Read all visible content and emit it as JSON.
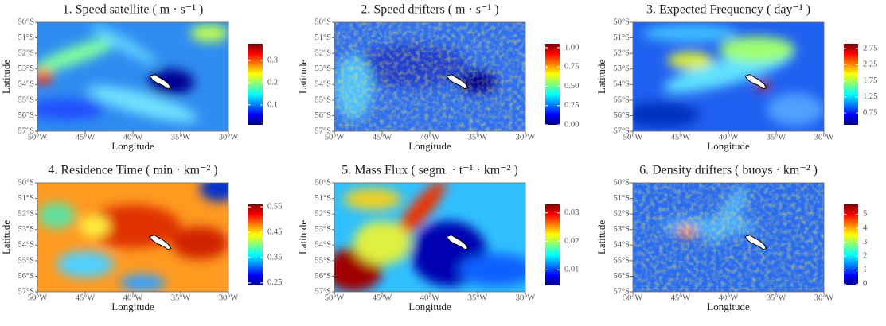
{
  "chart_data": [
    {
      "type": "heatmap",
      "title": "1. Speed satellite ( m · s⁻¹ )",
      "xlabel": "Longitude",
      "ylabel": "Latitude",
      "xlim": [
        -50,
        -30
      ],
      "xticks": [
        {
          "value": -50,
          "label": "50°W"
        },
        {
          "value": -45,
          "label": "45°W"
        },
        {
          "value": -40,
          "label": "40°W"
        },
        {
          "value": -35,
          "label": "35°W"
        },
        {
          "value": -30,
          "label": "30°W"
        }
      ],
      "ylim": [
        -57,
        -50
      ],
      "yticks": [
        {
          "value": -57,
          "label": "57°S"
        },
        {
          "value": -56,
          "label": "56°S"
        },
        {
          "value": -55,
          "label": "55°S"
        },
        {
          "value": -54,
          "label": "54°S"
        },
        {
          "value": -53,
          "label": "53°S"
        },
        {
          "value": -52,
          "label": "52°S"
        },
        {
          "value": -51,
          "label": "51°S"
        },
        {
          "value": -50,
          "label": "50°S"
        }
      ],
      "clim": [
        0.01,
        0.375
      ],
      "cticks": [
        0.1,
        0.2,
        0.3
      ]
    },
    {
      "type": "heatmap",
      "title": "2. Speed drifters ( m · s⁻¹ )",
      "xlabel": "Longitude",
      "ylabel": "Latitude",
      "xlim": [
        -50,
        -30
      ],
      "xticks": [
        {
          "value": -50,
          "label": "50°W"
        },
        {
          "value": -45,
          "label": "45°W"
        },
        {
          "value": -40,
          "label": "40°W"
        },
        {
          "value": -35,
          "label": "35°W"
        },
        {
          "value": -30,
          "label": "30°W"
        }
      ],
      "ylim": [
        -57,
        -50
      ],
      "yticks": [
        {
          "value": -57,
          "label": "57°S"
        },
        {
          "value": -56,
          "label": "56°S"
        },
        {
          "value": -55,
          "label": "55°S"
        },
        {
          "value": -54,
          "label": "54°S"
        },
        {
          "value": -53,
          "label": "53°S"
        },
        {
          "value": -52,
          "label": "52°S"
        },
        {
          "value": -51,
          "label": "51°S"
        },
        {
          "value": -50,
          "label": "50°S"
        }
      ],
      "clim": [
        0,
        1.05
      ],
      "cticks": [
        {
          "value": 0,
          "label": "0.00"
        },
        0.25,
        {
          "value": 0.5,
          "label": "0.50"
        },
        0.75,
        {
          "value": 1,
          "label": "1.00"
        }
      ]
    },
    {
      "type": "heatmap",
      "title": "3. Expected Frequency ( day⁻¹ )",
      "xlabel": "Longitude",
      "ylabel": "Latitude",
      "xlim": [
        -50,
        -30
      ],
      "xticks": [
        {
          "value": -50,
          "label": "50°W"
        },
        {
          "value": -45,
          "label": "45°W"
        },
        {
          "value": -40,
          "label": "40°W"
        },
        {
          "value": -35,
          "label": "35°W"
        },
        {
          "value": -30,
          "label": "30°W"
        }
      ],
      "ylim": [
        -57,
        -50
      ],
      "yticks": [
        {
          "value": -57,
          "label": "57°S"
        },
        {
          "value": -56,
          "label": "56°S"
        },
        {
          "value": -55,
          "label": "55°S"
        },
        {
          "value": -54,
          "label": "54°S"
        },
        {
          "value": -53,
          "label": "53°S"
        },
        {
          "value": -52,
          "label": "52°S"
        },
        {
          "value": -51,
          "label": "51°S"
        },
        {
          "value": -50,
          "label": "50°S"
        }
      ],
      "clim": [
        0.38,
        2.9
      ],
      "cticks": [
        0.75,
        1.25,
        1.75,
        2.25,
        2.75
      ]
    },
    {
      "type": "heatmap",
      "title": "4. Residence Time ( min · km⁻² )",
      "xlabel": "Longitude",
      "ylabel": "Latitude",
      "xlim": [
        -50,
        -30
      ],
      "xticks": [
        {
          "value": -50,
          "label": "50°W"
        },
        {
          "value": -45,
          "label": "45°W"
        },
        {
          "value": -40,
          "label": "40°W"
        },
        {
          "value": -35,
          "label": "35°W"
        },
        {
          "value": -30,
          "label": "30°W"
        }
      ],
      "ylim": [
        -57,
        -50
      ],
      "yticks": [
        {
          "value": -57,
          "label": "57°S"
        },
        {
          "value": -56,
          "label": "56°S"
        },
        {
          "value": -55,
          "label": "55°S"
        },
        {
          "value": -54,
          "label": "54°S"
        },
        {
          "value": -53,
          "label": "53°S"
        },
        {
          "value": -52,
          "label": "52°S"
        },
        {
          "value": -51,
          "label": "51°S"
        },
        {
          "value": -50,
          "label": "50°S"
        }
      ],
      "clim": [
        0.24,
        0.56
      ],
      "cticks": [
        0.25,
        0.35,
        0.45,
        0.55
      ]
    },
    {
      "type": "heatmap",
      "title": "5. Mass Flux ( segm. · t⁻¹ · km⁻² )",
      "xlabel": "Longitude",
      "ylabel": "Latitude",
      "xlim": [
        -50,
        -30
      ],
      "xticks": [
        {
          "value": -50,
          "label": "50°W"
        },
        {
          "value": -45,
          "label": "45°W"
        },
        {
          "value": -40,
          "label": "40°W"
        },
        {
          "value": -35,
          "label": "35°W"
        },
        {
          "value": -30,
          "label": "30°W"
        }
      ],
      "ylim": [
        -57,
        -50
      ],
      "yticks": [
        {
          "value": -57,
          "label": "57°S"
        },
        {
          "value": -56,
          "label": "56°S"
        },
        {
          "value": -55,
          "label": "55°S"
        },
        {
          "value": -54,
          "label": "54°S"
        },
        {
          "value": -53,
          "label": "53°S"
        },
        {
          "value": -52,
          "label": "52°S"
        },
        {
          "value": -51,
          "label": "51°S"
        },
        {
          "value": -50,
          "label": "50°S"
        }
      ],
      "clim": [
        0.0045,
        0.033
      ],
      "cticks": [
        0.01,
        0.02,
        0.03
      ]
    },
    {
      "type": "heatmap",
      "title": "6. Density drifters ( buoys · km⁻² )",
      "xlabel": "Longitude",
      "ylabel": "Latitude",
      "xlim": [
        -50,
        -30
      ],
      "xticks": [
        {
          "value": -50,
          "label": "50°W"
        },
        {
          "value": -45,
          "label": "45°W"
        },
        {
          "value": -40,
          "label": "40°W"
        },
        {
          "value": -35,
          "label": "35°W"
        },
        {
          "value": -30,
          "label": "30°W"
        }
      ],
      "ylim": [
        -57,
        -50
      ],
      "yticks": [
        {
          "value": -57,
          "label": "57°S"
        },
        {
          "value": -56,
          "label": "56°S"
        },
        {
          "value": -55,
          "label": "55°S"
        },
        {
          "value": -54,
          "label": "54°S"
        },
        {
          "value": -53,
          "label": "53°S"
        },
        {
          "value": -52,
          "label": "52°S"
        },
        {
          "value": -51,
          "label": "51°S"
        },
        {
          "value": -50,
          "label": "50°S"
        }
      ],
      "clim": [
        -0.1,
        5.7
      ],
      "cticks": [
        0,
        1,
        2,
        3,
        4,
        5
      ]
    }
  ]
}
